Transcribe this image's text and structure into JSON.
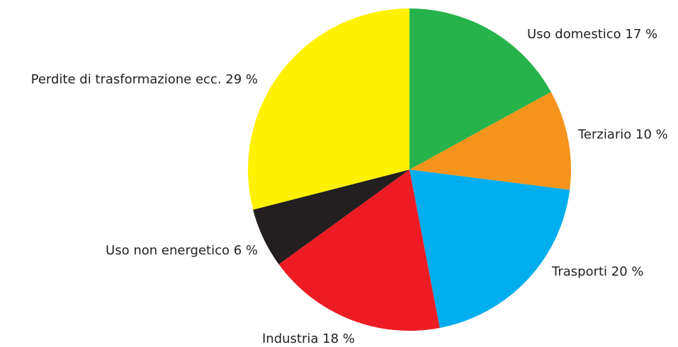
{
  "chart_data": {
    "type": "pie",
    "title": "",
    "start_angle_deg": 0,
    "direction": "clockwise",
    "slices": [
      {
        "label": "Uso domestico 17 %",
        "category": "Uso domestico",
        "value": 17,
        "color": "#27b34b"
      },
      {
        "label": "Terziario 10 %",
        "category": "Terziario",
        "value": 10,
        "color": "#f7941d"
      },
      {
        "label": "Trasporti 20 %",
        "category": "Trasporti",
        "value": 20,
        "color": "#00aeef"
      },
      {
        "label": "Industria 18 %",
        "category": "Industria",
        "value": 18,
        "color": "#ed1c24"
      },
      {
        "label": "Uso non energetico 6 %",
        "category": "Uso non energetico",
        "value": 6,
        "color": "#231f20"
      },
      {
        "label": "Perdite di trasformazione ecc. 29 %",
        "category": "Perdite di trasformazione ecc.",
        "value": 29,
        "color": "#fff200"
      }
    ]
  }
}
